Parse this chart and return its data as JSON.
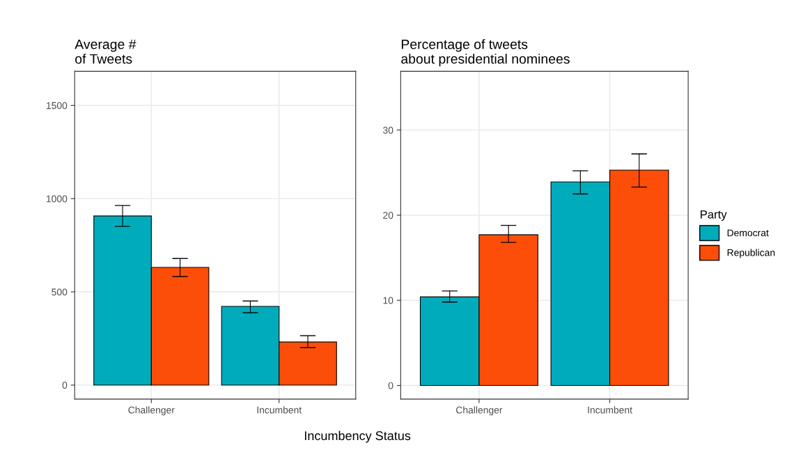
{
  "chart_data": [
    {
      "type": "bar",
      "title": "Average #\nof Tweets",
      "xlabel": "Incumbency Status",
      "categories": [
        "Challenger",
        "Incumbent"
      ],
      "series": [
        {
          "color": "#00acbb",
          "values": [
            907,
            422
          ],
          "errors": [
            [
              851,
              963
            ],
            [
              388,
              451
            ]
          ]
        },
        {
          "color": "#fc4e08",
          "values": [
            631,
            231
          ],
          "errors": [
            [
              582,
              679
            ],
            [
              201,
              265
            ]
          ]
        }
      ],
      "ylim": [
        -75,
        1683
      ],
      "yticks": [
        0,
        500,
        1000,
        1500
      ],
      "grid": true
    },
    {
      "type": "bar",
      "title": "Percentage of tweets\nabout presidential nominees",
      "legend_title": "Party",
      "categories": [
        "Challenger",
        "Incumbent"
      ],
      "series": [
        {
          "name": "Democrat",
          "color": "#00acbb",
          "values": [
            10.4,
            23.9
          ],
          "errors": [
            [
              9.8,
              11.1
            ],
            [
              22.5,
              25.2
            ]
          ]
        },
        {
          "name": "Republican",
          "color": "#fc4e08",
          "values": [
            17.7,
            25.3
          ],
          "errors": [
            [
              16.8,
              18.8
            ],
            [
              23.3,
              27.2
            ]
          ]
        }
      ],
      "ylim": [
        -1.6,
        36.9
      ],
      "yticks": [
        0,
        10,
        20,
        30
      ],
      "grid": true,
      "legend": "right"
    }
  ]
}
